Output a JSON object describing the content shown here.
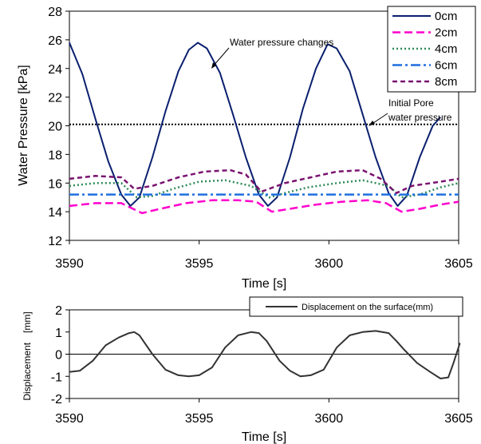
{
  "chart_data": [
    {
      "type": "line",
      "xlabel": "Time [s]",
      "ylabel": "Water Pressure [kPa]",
      "xlim": [
        3590,
        3605
      ],
      "ylim": [
        12,
        28
      ],
      "xticks": [
        3590,
        3595,
        3600,
        3605
      ],
      "yticks": [
        12,
        14,
        16,
        18,
        20,
        22,
        24,
        26,
        28
      ],
      "legend_position": "top-right",
      "series": [
        {
          "name": "0cm",
          "color": "#0a1f6e",
          "dash": "solid",
          "x": [
            3590,
            3590.5,
            3591,
            3591.5,
            3592,
            3592.35,
            3592.7,
            3593.2,
            3593.7,
            3594.2,
            3594.6,
            3594.95,
            3595.3,
            3595.8,
            3596.3,
            3596.8,
            3597.3,
            3597.65,
            3598,
            3598.5,
            3599,
            3599.5,
            3599.95,
            3600.3,
            3600.8,
            3601.3,
            3601.8,
            3602.3,
            3602.65,
            3603,
            3603.5,
            3604,
            3604.3
          ],
          "y": [
            25.8,
            23.6,
            20.5,
            17.5,
            15.2,
            14.4,
            15.0,
            17.8,
            21.0,
            23.8,
            25.3,
            25.8,
            25.4,
            23.7,
            20.8,
            17.8,
            15.2,
            14.4,
            15.0,
            17.8,
            21.2,
            24.0,
            25.7,
            25.4,
            23.8,
            20.8,
            17.8,
            15.3,
            14.4,
            15.1,
            17.8,
            20.0,
            20.6
          ]
        },
        {
          "name": "2cm",
          "color": "#ff00cc",
          "dash": "long-dash",
          "x": [
            3590,
            3591,
            3592,
            3592.8,
            3593.5,
            3594.5,
            3595.5,
            3596.5,
            3597.2,
            3597.8,
            3598.5,
            3599.5,
            3600.5,
            3601.5,
            3602.2,
            3602.8,
            3603.5,
            3604.3,
            3605
          ],
          "y": [
            14.4,
            14.6,
            14.6,
            13.9,
            14.2,
            14.6,
            14.8,
            14.8,
            14.7,
            14.0,
            14.2,
            14.5,
            14.7,
            14.8,
            14.6,
            14.0,
            14.2,
            14.5,
            14.7
          ]
        },
        {
          "name": "4cm",
          "color": "#2e8b57",
          "dash": "dot",
          "x": [
            3590,
            3591,
            3592,
            3592.6,
            3593.2,
            3594,
            3595,
            3596,
            3597,
            3597.7,
            3598.3,
            3599.2,
            3600.3,
            3601.3,
            3602.3,
            3602.8,
            3603.5,
            3604.3,
            3605
          ],
          "y": [
            15.8,
            16.0,
            16.0,
            15.0,
            15.1,
            15.6,
            16.1,
            16.2,
            15.8,
            15.0,
            15.3,
            15.7,
            16.0,
            16.2,
            15.8,
            15.0,
            15.2,
            15.7,
            16.0
          ]
        },
        {
          "name": "6cm",
          "color": "#1f6fe0",
          "dash": "dash-dot",
          "x": [
            3590,
            3605
          ],
          "y": [
            15.2,
            15.2
          ]
        },
        {
          "name": "8cm",
          "color": "#7a1370",
          "dash": "dash",
          "x": [
            3590,
            3591,
            3592,
            3592.5,
            3593.2,
            3594.2,
            3595.2,
            3596.2,
            3596.8,
            3597.4,
            3598.3,
            3599.3,
            3600.3,
            3601.3,
            3602,
            3602.6,
            3603.2,
            3604.3,
            3605
          ],
          "y": [
            16.3,
            16.5,
            16.4,
            15.6,
            15.8,
            16.4,
            16.8,
            16.9,
            16.6,
            15.4,
            16.0,
            16.4,
            16.8,
            16.9,
            16.3,
            15.3,
            15.8,
            16.1,
            16.3
          ]
        }
      ],
      "reference_line": {
        "y": 20.1,
        "color": "#000000",
        "dash": "dot"
      },
      "annotations": [
        {
          "text": "Water pressure changes",
          "x": 3595.3,
          "y": 24.9
        },
        {
          "text_lines": [
            "Initial Pore",
            "water pressure"
          ],
          "x": 3601.7,
          "y": 20.1
        }
      ]
    },
    {
      "type": "line",
      "xlabel": "Time [s]",
      "ylabel": "Displacement　[mm]",
      "xlim": [
        3590,
        3605
      ],
      "ylim": [
        -2,
        2
      ],
      "xticks": [
        3590,
        3595,
        3600,
        3605
      ],
      "yticks": [
        -2,
        -1,
        0,
        1,
        2
      ],
      "legend_position": "top-right",
      "series": [
        {
          "name": "Displacement on the surface(mm)",
          "color": "#333333",
          "dash": "solid",
          "x": [
            3590,
            3590.4,
            3590.9,
            3591.4,
            3591.9,
            3592.3,
            3592.5,
            3592.7,
            3593.2,
            3593.7,
            3594.2,
            3594.6,
            3595,
            3595.5,
            3596.0,
            3596.5,
            3597.0,
            3597.3,
            3597.6,
            3598.1,
            3598.5,
            3598.9,
            3599.3,
            3599.8,
            3600.3,
            3600.8,
            3601.3,
            3601.8,
            3602.3,
            3602.6,
            3602.9,
            3603.4,
            3603.9,
            3604.3,
            3604.6,
            3604.8,
            3605.05
          ],
          "y": [
            -0.8,
            -0.75,
            -0.3,
            0.4,
            0.75,
            0.95,
            1.0,
            0.85,
            0.0,
            -0.7,
            -0.95,
            -1.0,
            -0.95,
            -0.6,
            0.3,
            0.85,
            1.0,
            0.95,
            0.6,
            -0.3,
            -0.75,
            -1.0,
            -0.95,
            -0.7,
            0.3,
            0.85,
            1.0,
            1.05,
            0.95,
            0.6,
            0.2,
            -0.4,
            -0.8,
            -1.1,
            -1.05,
            -0.4,
            0.5
          ]
        }
      ]
    }
  ]
}
